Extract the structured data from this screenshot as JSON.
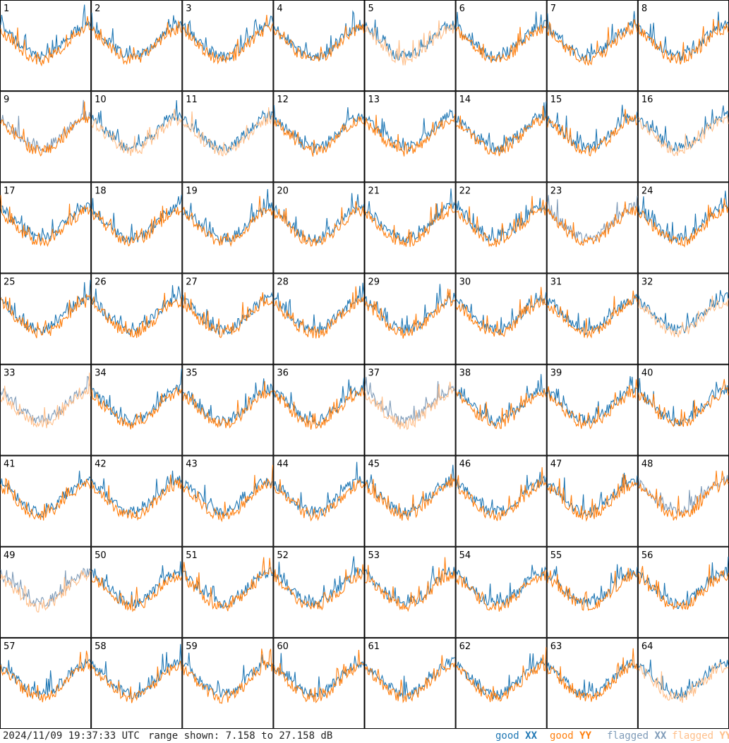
{
  "chart_data": {
    "type": "line",
    "grid": {
      "rows": 8,
      "cols": 8
    },
    "range_db": [
      7.158,
      27.158
    ],
    "series": [
      {
        "name": "good XX",
        "color": "#1f77b4"
      },
      {
        "name": "good YY",
        "color": "#ff7f0e"
      },
      {
        "name": "flagged XX",
        "color": "#7f9bb8"
      },
      {
        "name": "flagged YY",
        "color": "#ffbf8a"
      }
    ],
    "tiles": [
      {
        "label": "1",
        "xx": "good",
        "yy": "good"
      },
      {
        "label": "2",
        "xx": "good",
        "yy": "good"
      },
      {
        "label": "3",
        "xx": "good",
        "yy": "good"
      },
      {
        "label": "4",
        "xx": "good",
        "yy": "good"
      },
      {
        "label": "5",
        "xx": "good",
        "yy": "flagged"
      },
      {
        "label": "6",
        "xx": "good",
        "yy": "good"
      },
      {
        "label": "7",
        "xx": "good",
        "yy": "good"
      },
      {
        "label": "8",
        "xx": "good",
        "yy": "good"
      },
      {
        "label": "9",
        "xx": "flagged",
        "yy": "good"
      },
      {
        "label": "10",
        "xx": "good",
        "yy": "flagged"
      },
      {
        "label": "11",
        "xx": "good",
        "yy": "flagged"
      },
      {
        "label": "12",
        "xx": "good",
        "yy": "good"
      },
      {
        "label": "13",
        "xx": "good",
        "yy": "good"
      },
      {
        "label": "14",
        "xx": "good",
        "yy": "good"
      },
      {
        "label": "15",
        "xx": "good",
        "yy": "good"
      },
      {
        "label": "16",
        "xx": "good",
        "yy": "flagged"
      },
      {
        "label": "17",
        "xx": "good",
        "yy": "good"
      },
      {
        "label": "18",
        "xx": "good",
        "yy": "good"
      },
      {
        "label": "19",
        "xx": "good",
        "yy": "good"
      },
      {
        "label": "20",
        "xx": "good",
        "yy": "good"
      },
      {
        "label": "21",
        "xx": "good",
        "yy": "good"
      },
      {
        "label": "22",
        "xx": "good",
        "yy": "good"
      },
      {
        "label": "23",
        "xx": "flagged",
        "yy": "good"
      },
      {
        "label": "24",
        "xx": "good",
        "yy": "good"
      },
      {
        "label": "25",
        "xx": "good",
        "yy": "good"
      },
      {
        "label": "26",
        "xx": "good",
        "yy": "good"
      },
      {
        "label": "27",
        "xx": "good",
        "yy": "good"
      },
      {
        "label": "28",
        "xx": "good",
        "yy": "good"
      },
      {
        "label": "29",
        "xx": "good",
        "yy": "good"
      },
      {
        "label": "30",
        "xx": "good",
        "yy": "good"
      },
      {
        "label": "31",
        "xx": "good",
        "yy": "good"
      },
      {
        "label": "32",
        "xx": "good",
        "yy": "flagged"
      },
      {
        "label": "33",
        "xx": "flagged",
        "yy": "flagged"
      },
      {
        "label": "34",
        "xx": "good",
        "yy": "good"
      },
      {
        "label": "35",
        "xx": "good",
        "yy": "good"
      },
      {
        "label": "36",
        "xx": "good",
        "yy": "good"
      },
      {
        "label": "37",
        "xx": "flagged",
        "yy": "flagged"
      },
      {
        "label": "38",
        "xx": "good",
        "yy": "good"
      },
      {
        "label": "39",
        "xx": "good",
        "yy": "good"
      },
      {
        "label": "40",
        "xx": "good",
        "yy": "good"
      },
      {
        "label": "41",
        "xx": "good",
        "yy": "good"
      },
      {
        "label": "42",
        "xx": "good",
        "yy": "good"
      },
      {
        "label": "43",
        "xx": "good",
        "yy": "good"
      },
      {
        "label": "44",
        "xx": "good",
        "yy": "good"
      },
      {
        "label": "45",
        "xx": "good",
        "yy": "good"
      },
      {
        "label": "46",
        "xx": "good",
        "yy": "good"
      },
      {
        "label": "47",
        "xx": "good",
        "yy": "good"
      },
      {
        "label": "48",
        "xx": "flagged",
        "yy": "good"
      },
      {
        "label": "49",
        "xx": "flagged",
        "yy": "flagged"
      },
      {
        "label": "50",
        "xx": "good",
        "yy": "good"
      },
      {
        "label": "51",
        "xx": "good",
        "yy": "good"
      },
      {
        "label": "52",
        "xx": "good",
        "yy": "good"
      },
      {
        "label": "53",
        "xx": "good",
        "yy": "good"
      },
      {
        "label": "54",
        "xx": "good",
        "yy": "good"
      },
      {
        "label": "55",
        "xx": "good",
        "yy": "good"
      },
      {
        "label": "56",
        "xx": "good",
        "yy": "good"
      },
      {
        "label": "57",
        "xx": "good",
        "yy": "good"
      },
      {
        "label": "58",
        "xx": "good",
        "yy": "good"
      },
      {
        "label": "59",
        "xx": "good",
        "yy": "good"
      },
      {
        "label": "60",
        "xx": "good",
        "yy": "good"
      },
      {
        "label": "61",
        "xx": "good",
        "yy": "good"
      },
      {
        "label": "62",
        "xx": "good",
        "yy": "good"
      },
      {
        "label": "63",
        "xx": "good",
        "yy": "good"
      },
      {
        "label": "64",
        "xx": "good",
        "yy": "flagged"
      }
    ]
  },
  "footer": {
    "timestamp": "2024/11/09 19:37:33 UTC",
    "range_text": "range shown: 7.158 to 27.158 dB",
    "legend": {
      "good_xx_prefix": "good",
      "good_xx_suffix": "XX",
      "good_yy_prefix": "good",
      "good_yy_suffix": "YY",
      "flagged_xx_prefix": "flagged",
      "flagged_xx_suffix": "XX",
      "flagged_yy_prefix": "flagged",
      "flagged_yy_suffix": "YY"
    }
  }
}
